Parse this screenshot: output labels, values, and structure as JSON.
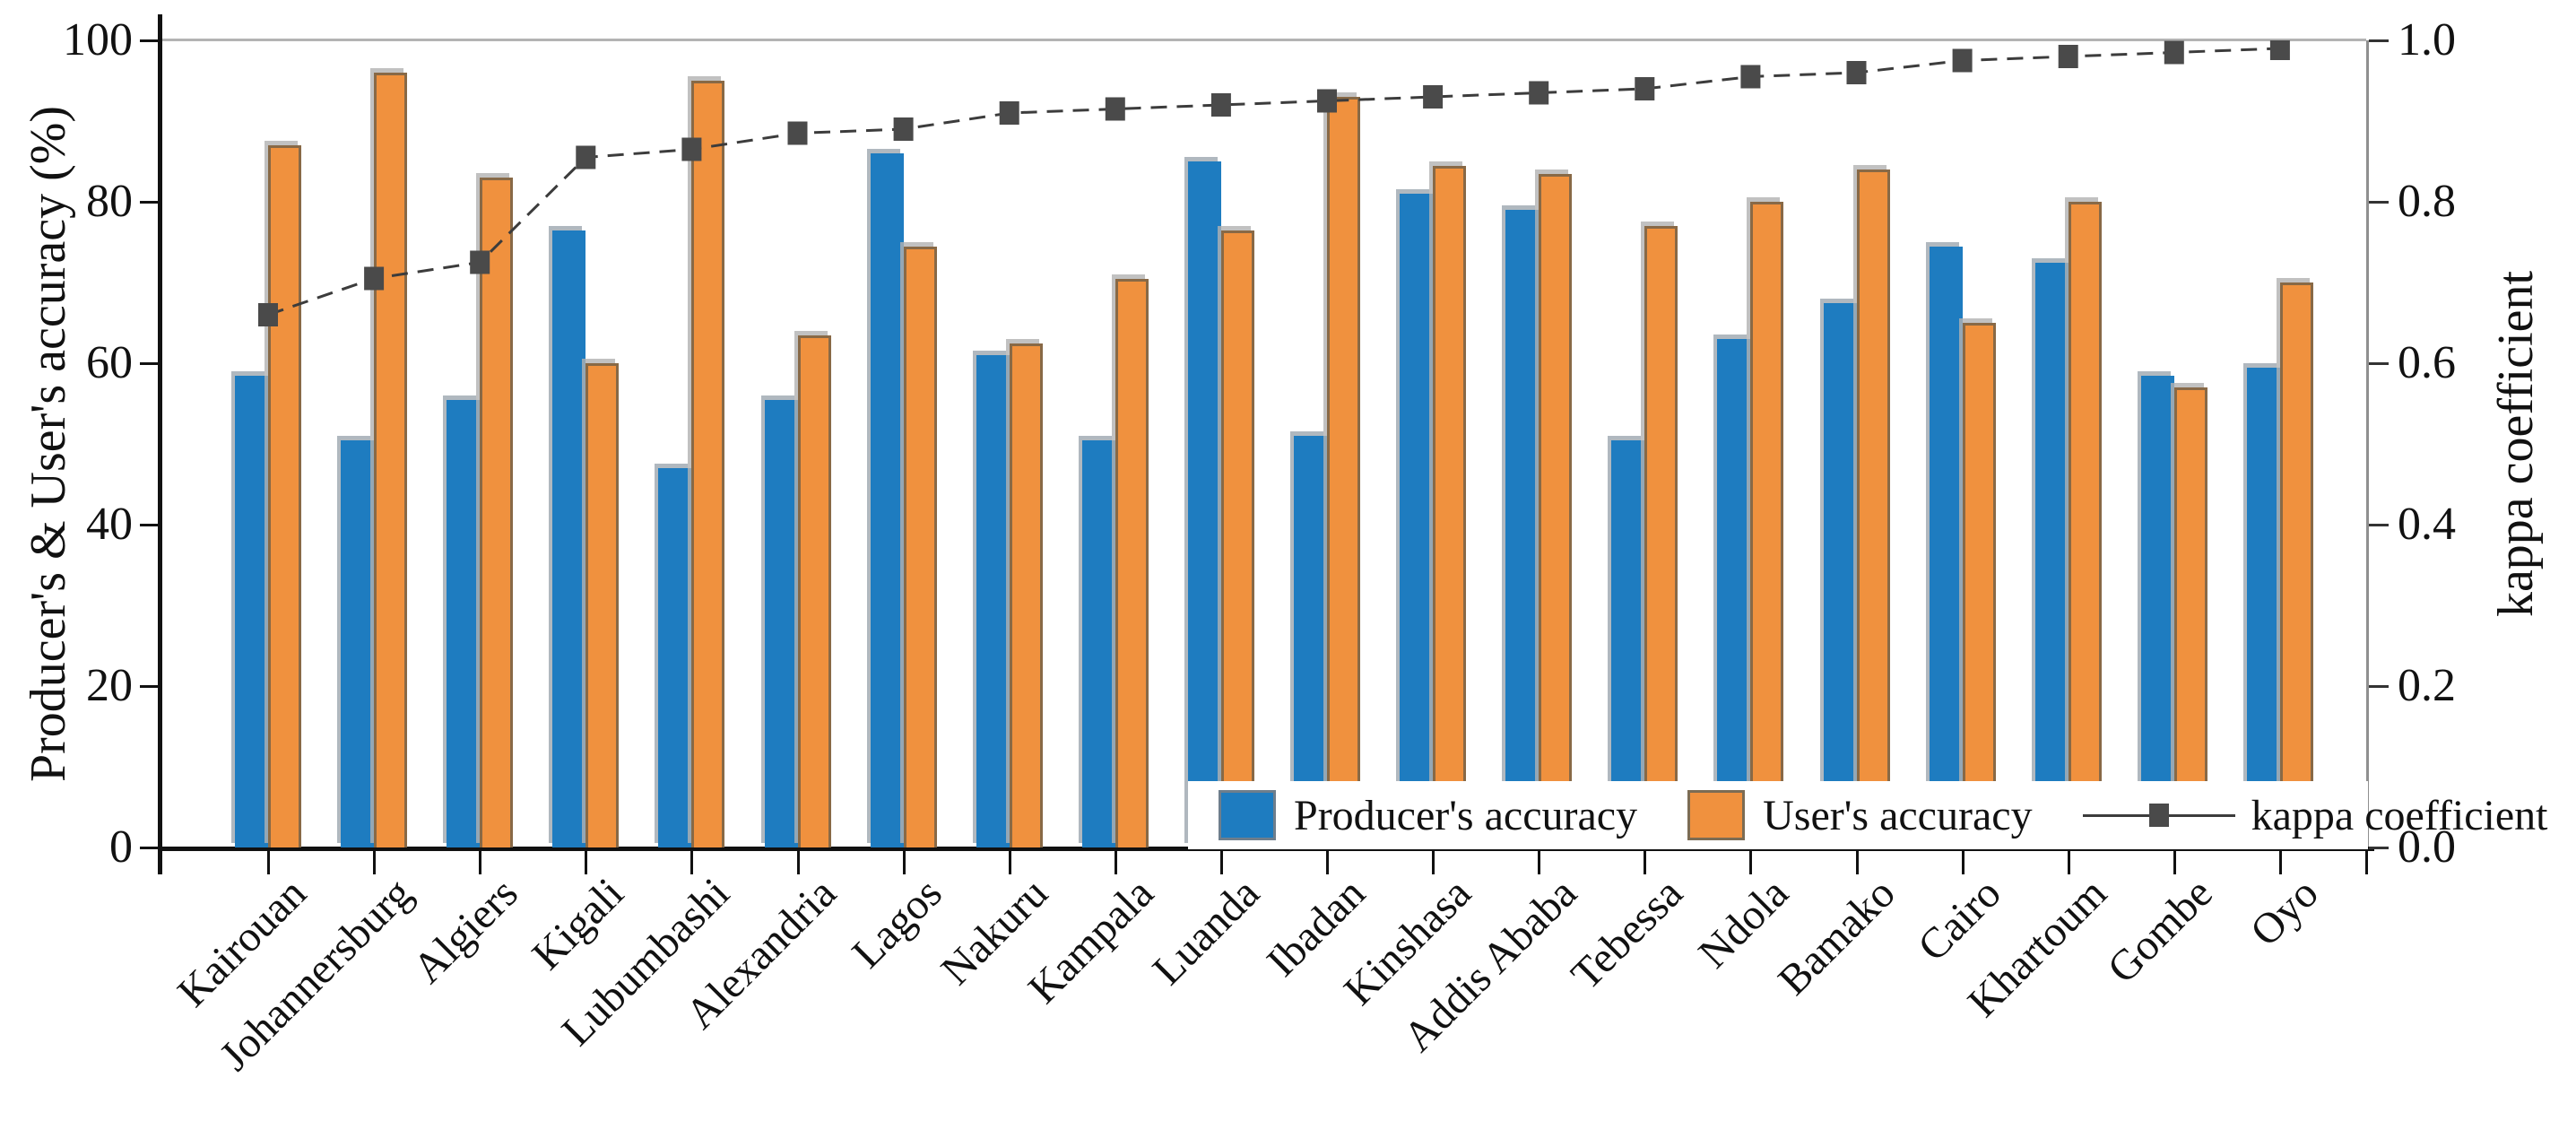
{
  "chart_data": {
    "type": "bar",
    "title": "",
    "categories": [
      "Kairouan",
      "Johannersburg",
      "Algiers",
      "Kigali",
      "Lubumbashi",
      "Alexandria",
      "Lagos",
      "Nakuru",
      "Kampala",
      "Luanda",
      "Ibadan",
      "Kinshasa",
      "Addis Ababa",
      "Tebessa",
      "Ndola",
      "Bamako",
      "Cairo",
      "Khartoum",
      "Gombe",
      "Oyo"
    ],
    "series": [
      {
        "name": "Producer's accuracy",
        "type": "bar",
        "color": "#1E7CC0",
        "values": [
          58.5,
          50.5,
          55.5,
          76.5,
          47,
          55.5,
          86,
          61,
          50.5,
          85,
          51,
          81,
          79,
          50.5,
          63,
          67.5,
          74.5,
          72.5,
          58.5,
          59.5
        ]
      },
      {
        "name": "User's accuracy",
        "type": "bar",
        "color": "#F0913E",
        "values": [
          87,
          96,
          83,
          60,
          95,
          63.5,
          74.5,
          62.5,
          70.5,
          76.5,
          93,
          84.5,
          83.5,
          77,
          80,
          84,
          65,
          80,
          57,
          70
        ]
      },
      {
        "name": "kappa coefficient",
        "type": "line",
        "color": "#4a4a4a",
        "values": [
          0.66,
          0.705,
          0.725,
          0.855,
          0.865,
          0.885,
          0.89,
          0.91,
          0.915,
          0.92,
          0.925,
          0.93,
          0.935,
          0.94,
          0.955,
          0.96,
          0.975,
          0.98,
          0.985,
          0.99
        ]
      }
    ],
    "left_axis": {
      "label": "Producer's & User's accuracy (%)",
      "ticks": [
        "0",
        "20",
        "40",
        "60",
        "80",
        "100"
      ],
      "range": [
        0,
        100
      ]
    },
    "right_axis": {
      "label": "kappa coefficient",
      "ticks": [
        "0.0",
        "0.2",
        "0.4",
        "0.6",
        "0.8",
        "1.0"
      ],
      "range": [
        0,
        1
      ]
    },
    "legend": {
      "position": "inside-bottom-right",
      "items": [
        "Producer's accuracy",
        "User's accuracy",
        "kappa coefficient"
      ]
    },
    "grid": "top-line-only"
  }
}
